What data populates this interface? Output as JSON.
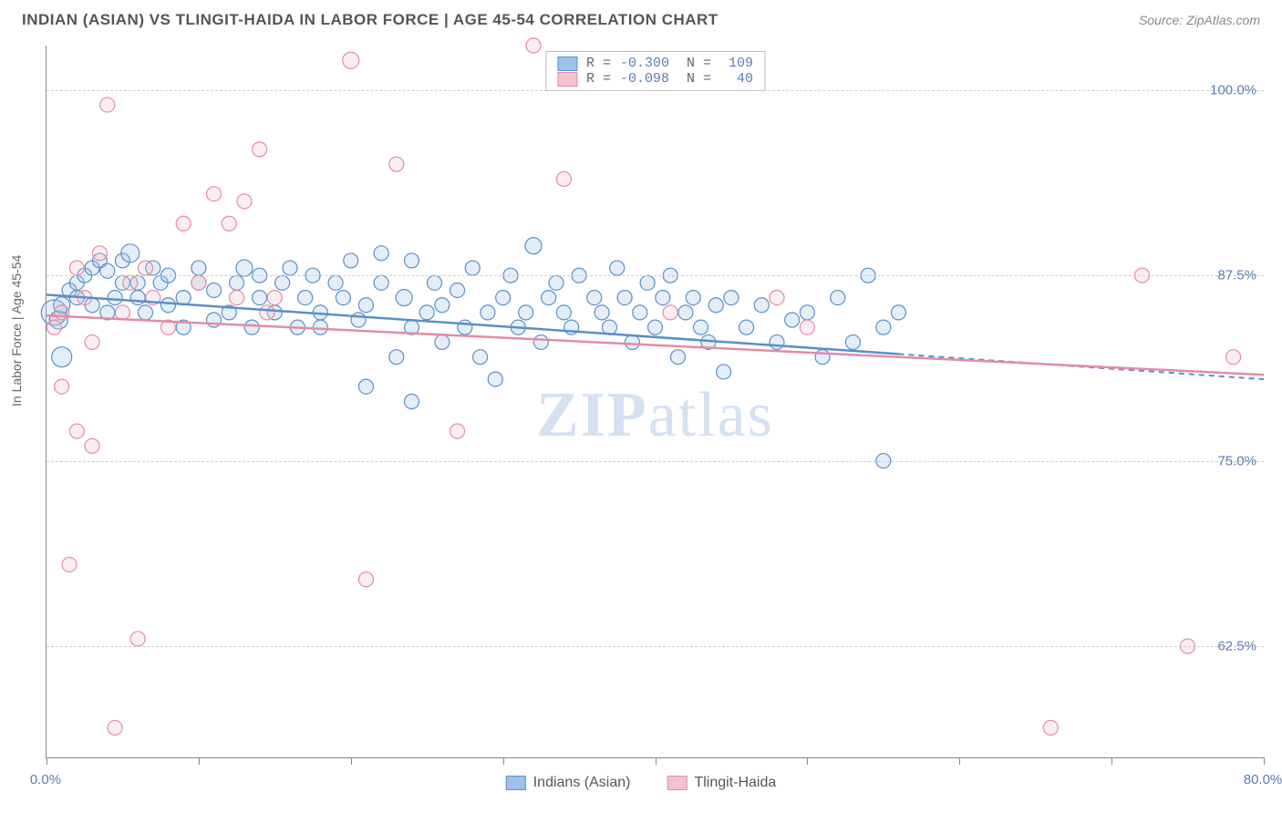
{
  "title": "INDIAN (ASIAN) VS TLINGIT-HAIDA IN LABOR FORCE | AGE 45-54 CORRELATION CHART",
  "source": "Source: ZipAtlas.com",
  "ylabel": "In Labor Force | Age 45-54",
  "watermark_bold": "ZIP",
  "watermark_rest": "atlas",
  "chart": {
    "type": "scatter-with-regression",
    "background_color": "#ffffff",
    "grid_color": "#cccccc",
    "axis_color": "#888888",
    "tick_label_color": "#5b7db1",
    "xlim": [
      0,
      80
    ],
    "ylim": [
      55,
      103
    ],
    "x_ticks": [
      0,
      10,
      20,
      30,
      40,
      50,
      60,
      70,
      80
    ],
    "x_tick_labels": {
      "0": "0.0%",
      "80": "80.0%"
    },
    "y_gridlines": [
      62.5,
      75.0,
      87.5,
      100.0
    ],
    "y_tick_labels": [
      "62.5%",
      "75.0%",
      "87.5%",
      "100.0%"
    ],
    "marker_radius_base": 8,
    "series": [
      {
        "name": "Indians (Asian)",
        "color_fill": "#9ec3e6",
        "color_stroke": "#5b8fc7",
        "R": "-0.300",
        "N": "109",
        "regression": {
          "x1": 0,
          "y1": 86.2,
          "x2": 56,
          "y2": 82.2,
          "x_dash_to": 80,
          "y_dash_to": 80.5
        },
        "points": [
          [
            0.5,
            85,
            14
          ],
          [
            0.8,
            84.5,
            10
          ],
          [
            1,
            85.5,
            9
          ],
          [
            1,
            82,
            11
          ],
          [
            1.5,
            86.5,
            8
          ],
          [
            2,
            87,
            8
          ],
          [
            2,
            86,
            8
          ],
          [
            2.5,
            87.5,
            8
          ],
          [
            3,
            88,
            8
          ],
          [
            3,
            85.5,
            8
          ],
          [
            3.5,
            88.5,
            8
          ],
          [
            4,
            87.8,
            8
          ],
          [
            4,
            85,
            8
          ],
          [
            4.5,
            86,
            8
          ],
          [
            5,
            87,
            8
          ],
          [
            5,
            88.5,
            8
          ],
          [
            5.5,
            89,
            10
          ],
          [
            6,
            87,
            8
          ],
          [
            6,
            86,
            8
          ],
          [
            6.5,
            85,
            8
          ],
          [
            7,
            88,
            8
          ],
          [
            7.5,
            87,
            8
          ],
          [
            8,
            85.5,
            8
          ],
          [
            8,
            87.5,
            8
          ],
          [
            9,
            86,
            8
          ],
          [
            9,
            84,
            8
          ],
          [
            10,
            87,
            8
          ],
          [
            10,
            88,
            8
          ],
          [
            11,
            84.5,
            8
          ],
          [
            11,
            86.5,
            8
          ],
          [
            12,
            85,
            8
          ],
          [
            12.5,
            87,
            8
          ],
          [
            13,
            88,
            9
          ],
          [
            13.5,
            84,
            8
          ],
          [
            14,
            86,
            8
          ],
          [
            14,
            87.5,
            8
          ],
          [
            15,
            85,
            8
          ],
          [
            15.5,
            87,
            8
          ],
          [
            16,
            88,
            8
          ],
          [
            16.5,
            84,
            8
          ],
          [
            17,
            86,
            8
          ],
          [
            17.5,
            87.5,
            8
          ],
          [
            18,
            85,
            8
          ],
          [
            18,
            84,
            8
          ],
          [
            19,
            87,
            8
          ],
          [
            19.5,
            86,
            8
          ],
          [
            20,
            88.5,
            8
          ],
          [
            20.5,
            84.5,
            8
          ],
          [
            21,
            85.5,
            8
          ],
          [
            22,
            87,
            8
          ],
          [
            22,
            89,
            8
          ],
          [
            23,
            82,
            8
          ],
          [
            23.5,
            86,
            9
          ],
          [
            24,
            84,
            8
          ],
          [
            24,
            88.5,
            8
          ],
          [
            25,
            85,
            8
          ],
          [
            25.5,
            87,
            8
          ],
          [
            26,
            83,
            8
          ],
          [
            26,
            85.5,
            8
          ],
          [
            27,
            86.5,
            8
          ],
          [
            27.5,
            84,
            8
          ],
          [
            28,
            88,
            8
          ],
          [
            28.5,
            82,
            8
          ],
          [
            29,
            85,
            8
          ],
          [
            29.5,
            80.5,
            8
          ],
          [
            30,
            86,
            8
          ],
          [
            30.5,
            87.5,
            8
          ],
          [
            31,
            84,
            8
          ],
          [
            31.5,
            85,
            8
          ],
          [
            32,
            89.5,
            9
          ],
          [
            32.5,
            83,
            8
          ],
          [
            33,
            86,
            8
          ],
          [
            33.5,
            87,
            8
          ],
          [
            34,
            85,
            8
          ],
          [
            34.5,
            84,
            8
          ],
          [
            35,
            87.5,
            8
          ],
          [
            36,
            86,
            8
          ],
          [
            36.5,
            85,
            8
          ],
          [
            37,
            84,
            8
          ],
          [
            37.5,
            88,
            8
          ],
          [
            38,
            86,
            8
          ],
          [
            38.5,
            83,
            8
          ],
          [
            39,
            85,
            8
          ],
          [
            39.5,
            87,
            8
          ],
          [
            40,
            84,
            8
          ],
          [
            40.5,
            86,
            8
          ],
          [
            41,
            87.5,
            8
          ],
          [
            41.5,
            82,
            8
          ],
          [
            42,
            85,
            8
          ],
          [
            42.5,
            86,
            8
          ],
          [
            43,
            84,
            8
          ],
          [
            43.5,
            83,
            8
          ],
          [
            44,
            85.5,
            8
          ],
          [
            44.5,
            81,
            8
          ],
          [
            45,
            86,
            8
          ],
          [
            46,
            84,
            8
          ],
          [
            47,
            85.5,
            8
          ],
          [
            48,
            83,
            8
          ],
          [
            49,
            84.5,
            8
          ],
          [
            50,
            85,
            8
          ],
          [
            51,
            82,
            8
          ],
          [
            52,
            86,
            8
          ],
          [
            53,
            83,
            8
          ],
          [
            54,
            87.5,
            8
          ],
          [
            55,
            84,
            8
          ],
          [
            55,
            75,
            8
          ],
          [
            56,
            85,
            8
          ],
          [
            21,
            80,
            8
          ],
          [
            24,
            79,
            8
          ]
        ]
      },
      {
        "name": "Tlingit-Haida",
        "color_fill": "#f2c2cf",
        "color_stroke": "#e48ba6",
        "R": "-0.098",
        "N": "40",
        "regression": {
          "x1": 0,
          "y1": 84.8,
          "x2": 80,
          "y2": 80.8
        },
        "points": [
          [
            0.5,
            84,
            8
          ],
          [
            1,
            85,
            8
          ],
          [
            1,
            80,
            8
          ],
          [
            1.5,
            68,
            8
          ],
          [
            2,
            88,
            8
          ],
          [
            2,
            77,
            8
          ],
          [
            2.5,
            86,
            8
          ],
          [
            3,
            83,
            8
          ],
          [
            3,
            76,
            8
          ],
          [
            3.5,
            89,
            8
          ],
          [
            4,
            99,
            8
          ],
          [
            4.5,
            57,
            8
          ],
          [
            5,
            85,
            8
          ],
          [
            5.5,
            87,
            8
          ],
          [
            6,
            63,
            8
          ],
          [
            6.5,
            88,
            8
          ],
          [
            7,
            86,
            8
          ],
          [
            8,
            84,
            8
          ],
          [
            9,
            91,
            8
          ],
          [
            10,
            87,
            8
          ],
          [
            11,
            93,
            8
          ],
          [
            12,
            91,
            8
          ],
          [
            12.5,
            86,
            8
          ],
          [
            13,
            92.5,
            8
          ],
          [
            14,
            96,
            8
          ],
          [
            14.5,
            85,
            8
          ],
          [
            15,
            86,
            8
          ],
          [
            20,
            102,
            9
          ],
          [
            21,
            67,
            8
          ],
          [
            23,
            95,
            8
          ],
          [
            27,
            77,
            8
          ],
          [
            32,
            103,
            8
          ],
          [
            34,
            94,
            8
          ],
          [
            41,
            85,
            8
          ],
          [
            48,
            86,
            8
          ],
          [
            50,
            84,
            8
          ],
          [
            66,
            57,
            8
          ],
          [
            72,
            87.5,
            8
          ],
          [
            75,
            62.5,
            8
          ],
          [
            78,
            82,
            8
          ]
        ]
      }
    ]
  },
  "legend_bottom": [
    {
      "label": "Indians (Asian)",
      "fill": "#9ec3e6",
      "stroke": "#5b8fc7"
    },
    {
      "label": "Tlingit-Haida",
      "fill": "#f2c2cf",
      "stroke": "#e48ba6"
    }
  ]
}
